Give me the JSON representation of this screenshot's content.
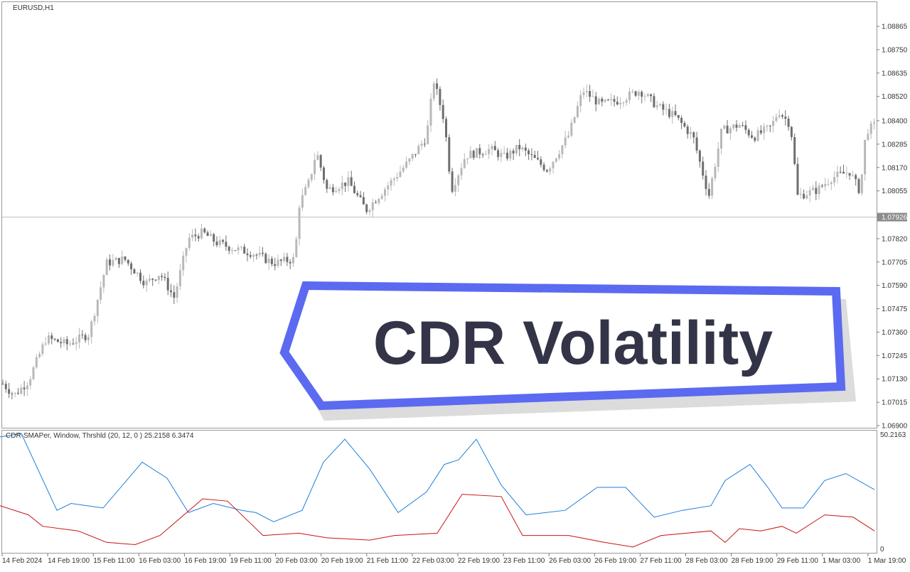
{
  "window": {
    "symbol_label": "EURUSD,H1",
    "indicator_label": "CDR-SMAPer, Window, Thrshld (20, 12, 0 ) 25.2158 6.3474"
  },
  "banner": {
    "title": "CDR Volatility",
    "border_color": "#5b6af0",
    "text_color": "#343448"
  },
  "price_axis": {
    "ticks": [
      "1.08865",
      "1.08750",
      "1.08635",
      "1.08520",
      "1.08400",
      "1.08285",
      "1.08170",
      "1.08055",
      "1.07820",
      "1.07705",
      "1.07590",
      "1.07475",
      "1.07360",
      "1.07245",
      "1.07130",
      "1.07015",
      "1.06900"
    ],
    "current_price": "1.07926"
  },
  "indicator_axis": {
    "max_label": "50.2163",
    "min_label": "0"
  },
  "time_axis": {
    "labels": [
      "14 Feb 2024",
      "14 Feb 19:00",
      "15 Feb 11:00",
      "16 Feb 03:00",
      "16 Feb 19:00",
      "19 Feb 11:00",
      "20 Feb 03:00",
      "20 Feb 19:00",
      "21 Feb 11:00",
      "22 Feb 03:00",
      "22 Feb 19:00",
      "23 Feb 11:00",
      "26 Feb 03:00",
      "26 Feb 19:00",
      "27 Feb 11:00",
      "28 Feb 03:00",
      "28 Feb 19:00",
      "29 Feb 11:00",
      "1 Mar 03:00",
      "1 Mar 19:00"
    ]
  },
  "chart_data": [
    {
      "type": "candlestick",
      "title": "EURUSD,H1",
      "ylim": [
        1.069,
        1.0892
      ],
      "current_price": 1.07926,
      "price_profile": [
        [
          0,
          1.0712
        ],
        [
          20,
          1.0705
        ],
        [
          40,
          1.0712
        ],
        [
          65,
          1.0733
        ],
        [
          95,
          1.073
        ],
        [
          125,
          1.0735
        ],
        [
          150,
          1.077
        ],
        [
          175,
          1.0772
        ],
        [
          205,
          1.076
        ],
        [
          225,
          1.0765
        ],
        [
          245,
          1.0753
        ],
        [
          265,
          1.0782
        ],
        [
          285,
          1.0785
        ],
        [
          305,
          1.078
        ],
        [
          330,
          1.0777
        ],
        [
          355,
          1.0775
        ],
        [
          385,
          1.077
        ],
        [
          415,
          1.0772
        ],
        [
          420,
          1.0798
        ],
        [
          435,
          1.081
        ],
        [
          445,
          1.0825
        ],
        [
          460,
          1.0806
        ],
        [
          490,
          1.081
        ],
        [
          515,
          1.0796
        ],
        [
          545,
          1.0808
        ],
        [
          575,
          1.082
        ],
        [
          600,
          1.0832
        ],
        [
          610,
          1.086
        ],
        [
          625,
          1.084
        ],
        [
          635,
          1.0806
        ],
        [
          655,
          1.0823
        ],
        [
          690,
          1.0826
        ],
        [
          710,
          1.0822
        ],
        [
          730,
          1.0827
        ],
        [
          770,
          1.0816
        ],
        [
          800,
          1.0833
        ],
        [
          820,
          1.0855
        ],
        [
          845,
          1.0848
        ],
        [
          870,
          1.085
        ],
        [
          900,
          1.0855
        ],
        [
          925,
          1.0847
        ],
        [
          950,
          1.0842
        ],
        [
          975,
          1.0832
        ],
        [
          997,
          1.0803
        ],
        [
          1015,
          1.0835
        ],
        [
          1040,
          1.0838
        ],
        [
          1060,
          1.0832
        ],
        [
          1085,
          1.0837
        ],
        [
          1095,
          1.0845
        ],
        [
          1112,
          1.0838
        ],
        [
          1122,
          1.0803
        ],
        [
          1150,
          1.0806
        ],
        [
          1170,
          1.0812
        ],
        [
          1195,
          1.0815
        ],
        [
          1210,
          1.0805
        ],
        [
          1218,
          1.0835
        ],
        [
          1232,
          1.0838
        ]
      ]
    },
    {
      "type": "line",
      "title": "CDR-SMAPer, Window, Thrshld (20, 12, 0 )",
      "ylim": [
        0,
        50.2163
      ],
      "series": [
        {
          "color": "#1e7fdc",
          "values": [
            [
              0,
              49
            ],
            [
              30,
              50.5
            ],
            [
              80,
              17
            ],
            [
              100,
              20
            ],
            [
              145,
              18
            ],
            [
              200,
              38
            ],
            [
              235,
              31
            ],
            [
              265,
              16
            ],
            [
              300,
              20
            ],
            [
              340,
              17
            ],
            [
              360,
              16
            ],
            [
              385,
              12
            ],
            [
              425,
              17
            ],
            [
              455,
              38
            ],
            [
              485,
              48
            ],
            [
              520,
              35
            ],
            [
              560,
              16
            ],
            [
              600,
              25
            ],
            [
              625,
              37
            ],
            [
              645,
              39
            ],
            [
              670,
              48
            ],
            [
              705,
              28
            ],
            [
              740,
              15
            ],
            [
              795,
              17
            ],
            [
              840,
              27
            ],
            [
              880,
              27
            ],
            [
              920,
              14
            ],
            [
              960,
              17
            ],
            [
              1000,
              19
            ],
            [
              1020,
              30
            ],
            [
              1055,
              37
            ],
            [
              1080,
              27
            ],
            [
              1100,
              18
            ],
            [
              1130,
              18
            ],
            [
              1160,
              30
            ],
            [
              1190,
              33
            ],
            [
              1230,
              26
            ]
          ]
        },
        {
          "color": "#c81414",
          "values": [
            [
              0,
              19
            ],
            [
              40,
              15
            ],
            [
              60,
              10
            ],
            [
              110,
              8
            ],
            [
              150,
              3
            ],
            [
              190,
              2
            ],
            [
              225,
              6
            ],
            [
              285,
              22
            ],
            [
              320,
              21
            ],
            [
              350,
              12
            ],
            [
              370,
              6
            ],
            [
              420,
              7
            ],
            [
              460,
              5
            ],
            [
              520,
              4
            ],
            [
              555,
              6
            ],
            [
              615,
              7
            ],
            [
              650,
              24
            ],
            [
              705,
              23
            ],
            [
              735,
              6
            ],
            [
              800,
              6
            ],
            [
              850,
              3
            ],
            [
              890,
              1
            ],
            [
              930,
              6
            ],
            [
              1000,
              8
            ],
            [
              1020,
              3
            ],
            [
              1040,
              9
            ],
            [
              1070,
              8
            ],
            [
              1100,
              10
            ],
            [
              1120,
              7
            ],
            [
              1160,
              15
            ],
            [
              1200,
              14
            ],
            [
              1230,
              8
            ]
          ]
        }
      ]
    }
  ]
}
